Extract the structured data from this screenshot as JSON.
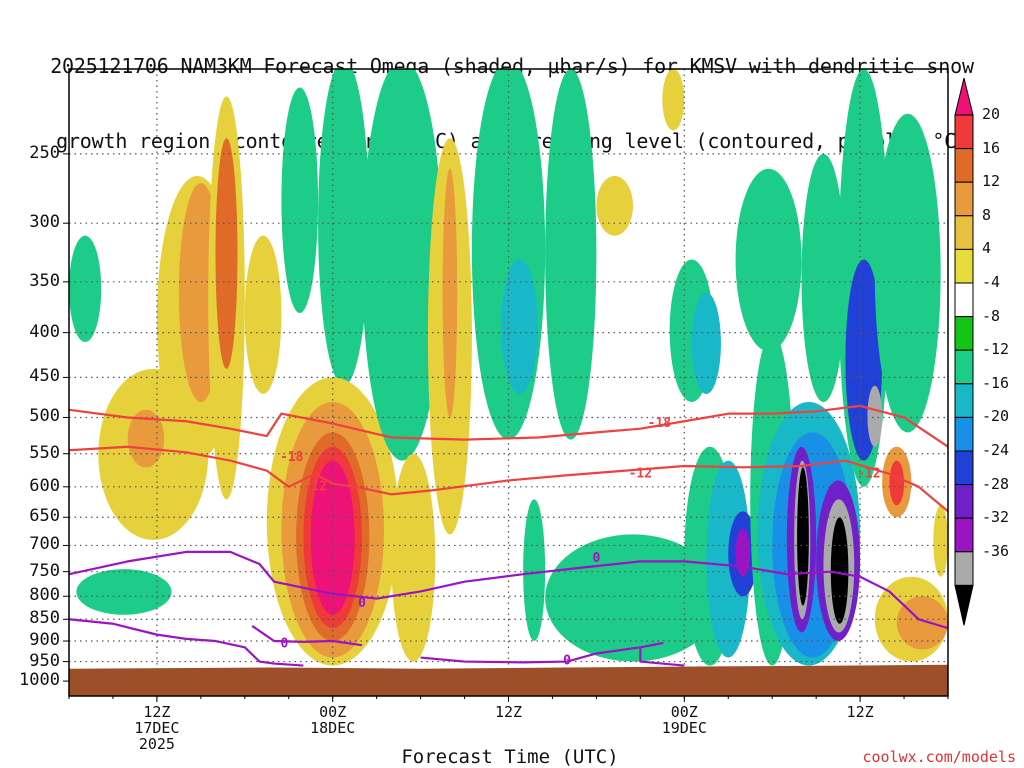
{
  "title_line1": "2025121706 NAM3KM Forecast Omega (shaded, μbar/s) for KMSV with dendritic snow",
  "title_line2": "growth region (contoured, red, °C) and freezing level (contoured, purple, °C)",
  "credit": "coolwx.com/models",
  "chart_data": {
    "type": "heatmap",
    "title": "2025121706 NAM3KM Forecast Omega (shaded, μbar/s) for KMSV with dendritic snow growth region (contoured, red, °C) and freezing level (contoured, purple, °C)",
    "xlabel": "Forecast Time (UTC)",
    "ylabel": "",
    "y_scale": "log-pressure, inverted",
    "yticks": [
      "250",
      "300",
      "350",
      "400",
      "450",
      "500",
      "550",
      "600",
      "650",
      "700",
      "750",
      "800",
      "850",
      "900",
      "950",
      "1000"
    ],
    "xticks": [
      {
        "hour": 12,
        "label": [
          "12Z",
          "17DEC",
          "2025"
        ]
      },
      {
        "hour": 24,
        "label": [
          "00Z",
          "18DEC"
        ]
      },
      {
        "hour": 36,
        "label": [
          "12Z"
        ]
      },
      {
        "hour": 48,
        "label": [
          "00Z",
          "19DEC"
        ]
      },
      {
        "hour": 60,
        "label": [
          "12Z"
        ]
      }
    ],
    "xlim_hours": [
      6,
      66
    ],
    "ylim_hPa": [
      200,
      1040
    ],
    "grid": true,
    "colorbar": {
      "labels": [
        "20",
        "16",
        "12",
        "8",
        "4",
        "-4",
        "-8",
        "-12",
        "-16",
        "-20",
        "-24",
        "-28",
        "-32",
        "-36"
      ],
      "colors": [
        "#ee1177",
        "#f03a3a",
        "#e06a28",
        "#e89a3c",
        "#e8c040",
        "#e6dc3c",
        "#ffffff",
        "#14c414",
        "#1ccc88",
        "#18b8c8",
        "#1890e8",
        "#2040d8",
        "#7020c8",
        "#9a14c4",
        "#aaaaaa",
        "#000000"
      ]
    },
    "contours": [
      {
        "name": "-18",
        "color": "#f04040",
        "kind": "dendritic-growth"
      },
      {
        "name": "-12",
        "color": "#f04040",
        "kind": "dendritic-growth"
      },
      {
        "name": "0",
        "color": "#9a14c4",
        "kind": "freezing-level"
      }
    ],
    "omega_regions": [
      {
        "t0": 6.0,
        "t1": 8.2,
        "p0": 310,
        "p1": 410,
        "value": -8
      },
      {
        "t0": 6.5,
        "t1": 13.0,
        "p0": 745,
        "p1": 840,
        "value": -8
      },
      {
        "t0": 8.0,
        "t1": 15.5,
        "p0": 440,
        "p1": 690,
        "value": 6
      },
      {
        "t0": 10.0,
        "t1": 12.5,
        "p0": 490,
        "p1": 570,
        "value": 10
      },
      {
        "t0": 12.0,
        "t1": 17.5,
        "p0": 265,
        "p1": 560,
        "value": 6
      },
      {
        "t0": 13.5,
        "t1": 16.5,
        "p0": 270,
        "p1": 480,
        "value": 10
      },
      {
        "t0": 15.5,
        "t1": 18.0,
        "p0": 215,
        "p1": 620,
        "value": 6
      },
      {
        "t0": 16.0,
        "t1": 17.5,
        "p0": 240,
        "p1": 440,
        "value": 12
      },
      {
        "t0": 18.0,
        "t1": 20.5,
        "p0": 310,
        "p1": 470,
        "value": 6
      },
      {
        "t0": 20.5,
        "t1": 23.0,
        "p0": 210,
        "p1": 380,
        "value": -8
      },
      {
        "t0": 23.0,
        "t1": 26.5,
        "p0": 195,
        "p1": 460,
        "value": -8
      },
      {
        "t0": 19.5,
        "t1": 28.5,
        "p0": 450,
        "p1": 960,
        "value": 6
      },
      {
        "t0": 20.5,
        "t1": 27.5,
        "p0": 480,
        "p1": 940,
        "value": 10
      },
      {
        "t0": 21.5,
        "t1": 26.5,
        "p0": 520,
        "p1": 900,
        "value": 14
      },
      {
        "t0": 22.0,
        "t1": 26.0,
        "p0": 540,
        "p1": 870,
        "value": 18
      },
      {
        "t0": 22.5,
        "t1": 25.5,
        "p0": 560,
        "p1": 840,
        "value": 22
      },
      {
        "t0": 26.0,
        "t1": 31.5,
        "p0": 195,
        "p1": 560,
        "value": -8
      },
      {
        "t0": 28.0,
        "t1": 31.0,
        "p0": 550,
        "p1": 950,
        "value": 6
      },
      {
        "t0": 30.5,
        "t1": 33.5,
        "p0": 240,
        "p1": 680,
        "value": 6
      },
      {
        "t0": 31.5,
        "t1": 32.5,
        "p0": 260,
        "p1": 500,
        "value": 10
      },
      {
        "t0": 33.5,
        "t1": 38.5,
        "p0": 195,
        "p1": 530,
        "value": -8
      },
      {
        "t0": 35.5,
        "t1": 38.0,
        "p0": 330,
        "p1": 470,
        "value": -12
      },
      {
        "t0": 38.5,
        "t1": 42.0,
        "p0": 200,
        "p1": 530,
        "value": -8
      },
      {
        "t0": 37.0,
        "t1": 38.5,
        "p0": 620,
        "p1": 900,
        "value": -8
      },
      {
        "t0": 38.5,
        "t1": 50.5,
        "p0": 680,
        "p1": 950,
        "value": -8
      },
      {
        "t0": 42.0,
        "t1": 44.5,
        "p0": 265,
        "p1": 310,
        "value": 6
      },
      {
        "t0": 46.5,
        "t1": 48.0,
        "p0": 200,
        "p1": 235,
        "value": 6
      },
      {
        "t0": 47.0,
        "t1": 50.0,
        "p0": 330,
        "p1": 480,
        "value": -8
      },
      {
        "t0": 48.5,
        "t1": 50.5,
        "p0": 360,
        "p1": 470,
        "value": -12
      },
      {
        "t0": 48.0,
        "t1": 51.5,
        "p0": 540,
        "p1": 960,
        "value": -8
      },
      {
        "t0": 49.5,
        "t1": 52.5,
        "p0": 560,
        "p1": 940,
        "value": -12
      },
      {
        "t0": 51.0,
        "t1": 53.0,
        "p0": 640,
        "p1": 800,
        "value": -20
      },
      {
        "t0": 51.5,
        "t1": 52.5,
        "p0": 670,
        "p1": 760,
        "value": -28
      },
      {
        "t0": 51.5,
        "t1": 56.0,
        "p0": 260,
        "p1": 420,
        "value": -8
      },
      {
        "t0": 52.5,
        "t1": 55.5,
        "p0": 400,
        "p1": 960,
        "value": -8
      },
      {
        "t0": 53.0,
        "t1": 60.0,
        "p0": 480,
        "p1": 960,
        "value": -12
      },
      {
        "t0": 54.0,
        "t1": 59.5,
        "p0": 520,
        "p1": 940,
        "value": -16
      },
      {
        "t0": 55.0,
        "t1": 57.0,
        "p0": 540,
        "p1": 880,
        "value": -24
      },
      {
        "t0": 55.5,
        "t1": 56.6,
        "p0": 560,
        "p1": 850,
        "value": -32
      },
      {
        "t0": 55.7,
        "t1": 56.5,
        "p0": 570,
        "p1": 820,
        "value": -36
      },
      {
        "t0": 57.0,
        "t1": 60.0,
        "p0": 590,
        "p1": 900,
        "value": -24
      },
      {
        "t0": 57.5,
        "t1": 59.6,
        "p0": 620,
        "p1": 880,
        "value": -32
      },
      {
        "t0": 58.0,
        "t1": 59.2,
        "p0": 650,
        "p1": 860,
        "value": -36
      },
      {
        "t0": 56.0,
        "t1": 59.0,
        "p0": 250,
        "p1": 480,
        "value": -8
      },
      {
        "t0": 58.5,
        "t1": 62.0,
        "p0": 200,
        "p1": 600,
        "value": -8
      },
      {
        "t0": 59.0,
        "t1": 61.5,
        "p0": 330,
        "p1": 560,
        "value": -20
      },
      {
        "t0": 60.5,
        "t1": 61.5,
        "p0": 460,
        "p1": 540,
        "value": -32
      },
      {
        "t0": 61.0,
        "t1": 65.5,
        "p0": 225,
        "p1": 520,
        "value": -8
      },
      {
        "t0": 61.5,
        "t1": 63.5,
        "p0": 540,
        "p1": 650,
        "value": 10
      },
      {
        "t0": 62.0,
        "t1": 63.0,
        "p0": 560,
        "p1": 630,
        "value": 18
      },
      {
        "t0": 61.0,
        "t1": 66.0,
        "p0": 760,
        "p1": 950,
        "value": 6
      },
      {
        "t0": 62.5,
        "t1": 66.0,
        "p0": 800,
        "p1": 920,
        "value": 10
      },
      {
        "t0": 65.0,
        "t1": 66.0,
        "p0": 630,
        "p1": 760,
        "value": 6
      }
    ],
    "dendritic_lines": [
      {
        "label": "-18",
        "points": [
          [
            6,
            490
          ],
          [
            10,
            500
          ],
          [
            14,
            505
          ],
          [
            17,
            515
          ],
          [
            19.5,
            525
          ],
          [
            20.5,
            495
          ],
          [
            24,
            508
          ],
          [
            28,
            527
          ],
          [
            33,
            530
          ],
          [
            38,
            527
          ],
          [
            42,
            520
          ],
          [
            45,
            515
          ],
          [
            48,
            505
          ],
          [
            51,
            495
          ],
          [
            54,
            495
          ],
          [
            57,
            492
          ],
          [
            60,
            485
          ],
          [
            63,
            500
          ],
          [
            66,
            540
          ]
        ]
      },
      {
        "label": "-12",
        "points": [
          [
            6,
            545
          ],
          [
            10,
            540
          ],
          [
            14,
            548
          ],
          [
            17,
            560
          ],
          [
            19.5,
            575
          ],
          [
            21,
            600
          ],
          [
            22.8,
            580
          ],
          [
            24,
            595
          ],
          [
            26,
            602
          ],
          [
            28,
            612
          ],
          [
            31,
            605
          ],
          [
            36,
            590
          ],
          [
            40,
            582
          ],
          [
            44,
            575
          ],
          [
            48,
            568
          ],
          [
            52,
            570
          ],
          [
            56,
            568
          ],
          [
            59,
            560
          ],
          [
            62,
            580
          ],
          [
            64,
            600
          ],
          [
            66,
            640
          ]
        ]
      }
    ],
    "dendritic_label_positions": [
      {
        "label": "-18",
        "t": 21.2,
        "p": 553
      },
      {
        "label": "-18",
        "t": 46.3,
        "p": 506
      },
      {
        "label": "-12",
        "t": 45.0,
        "p": 578
      },
      {
        "label": "-12",
        "t": 60.6,
        "p": 578
      },
      {
        "label": "-12",
        "t": 22.8,
        "p": 598
      }
    ],
    "freezing_lines": [
      {
        "label": "0",
        "points": [
          [
            6,
            755
          ],
          [
            10,
            730
          ],
          [
            14,
            712
          ],
          [
            17,
            712
          ],
          [
            19,
            735
          ],
          [
            20,
            770
          ],
          [
            24,
            795
          ],
          [
            27,
            805
          ],
          [
            30,
            790
          ],
          [
            33,
            770
          ],
          [
            37,
            755
          ],
          [
            41,
            742
          ],
          [
            45,
            730
          ],
          [
            48,
            730
          ],
          [
            52,
            740
          ],
          [
            55,
            755
          ],
          [
            58,
            750
          ],
          [
            60,
            760
          ],
          [
            62,
            790
          ],
          [
            64,
            850
          ],
          [
            66,
            870
          ]
        ]
      },
      {
        "label": "0",
        "points": [
          [
            6,
            850
          ],
          [
            9,
            860
          ],
          [
            12,
            885
          ],
          [
            14,
            895
          ],
          [
            16,
            900
          ],
          [
            18,
            915
          ],
          [
            19,
            950
          ],
          [
            20,
            955
          ],
          [
            22,
            960
          ]
        ]
      },
      {
        "label": "0",
        "points": [
          [
            18.5,
            865
          ],
          [
            20,
            900
          ],
          [
            22,
            902
          ],
          [
            24,
            900
          ],
          [
            26,
            910
          ]
        ]
      },
      {
        "label": "0",
        "points": [
          [
            30,
            940
          ],
          [
            33,
            950
          ],
          [
            37,
            952
          ],
          [
            40,
            950
          ],
          [
            42,
            930
          ],
          [
            45,
            915
          ],
          [
            46.5,
            905
          ],
          [
            45,
            915
          ],
          [
            45,
            950
          ],
          [
            48,
            960
          ]
        ]
      }
    ],
    "freezing_label_positions": [
      {
        "label": "0",
        "t": 26.0,
        "p": 812
      },
      {
        "label": "0",
        "t": 20.7,
        "p": 903
      },
      {
        "label": "0",
        "t": 42.0,
        "p": 722
      },
      {
        "label": "0",
        "t": 40.0,
        "p": 945
      }
    ]
  }
}
